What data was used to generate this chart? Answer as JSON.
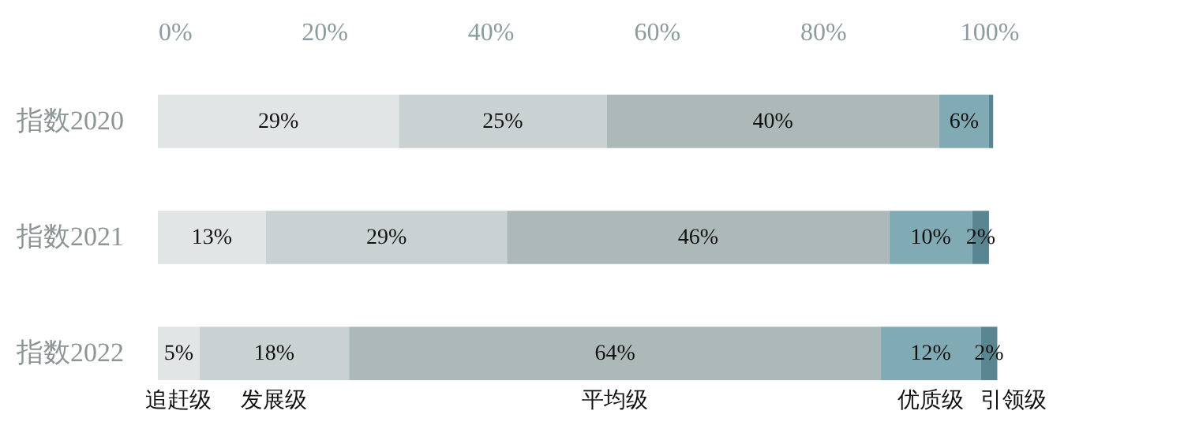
{
  "chart_data": {
    "type": "bar",
    "orientation": "horizontal",
    "stacked": true,
    "categories": [
      "指数2020",
      "指数2021",
      "指数2022"
    ],
    "series": [
      {
        "name": "追赶级",
        "color": "#e1e5e6",
        "values": [
          29,
          13,
          5
        ],
        "value_labels": [
          "29%",
          "13%",
          "5%"
        ]
      },
      {
        "name": "发展级",
        "color": "#c9d1d2",
        "values": [
          25,
          29,
          18
        ],
        "value_labels": [
          "25%",
          "29%",
          "18%"
        ]
      },
      {
        "name": "平均级",
        "color": "#adb9b9",
        "values": [
          40,
          46,
          64
        ],
        "value_labels": [
          "40%",
          "46%",
          "64%"
        ]
      },
      {
        "name": "优质级",
        "color": "#80aab4",
        "values": [
          6,
          10,
          12
        ],
        "value_labels": [
          "6%",
          "10%",
          "12%"
        ]
      },
      {
        "name": "引领级",
        "color": "#5a8692",
        "values": [
          0.5,
          2,
          2
        ],
        "value_labels": [
          null,
          "2%",
          "2%"
        ]
      }
    ],
    "xlim": [
      0,
      102
    ],
    "xticks": [
      {
        "value": 0,
        "label": "0%"
      },
      {
        "value": 20,
        "label": "20%"
      },
      {
        "value": 40,
        "label": "40%"
      },
      {
        "value": 60,
        "label": "60%"
      },
      {
        "value": 80,
        "label": "80%"
      },
      {
        "value": 100,
        "label": "100%"
      }
    ],
    "grid": false,
    "legend": false
  }
}
